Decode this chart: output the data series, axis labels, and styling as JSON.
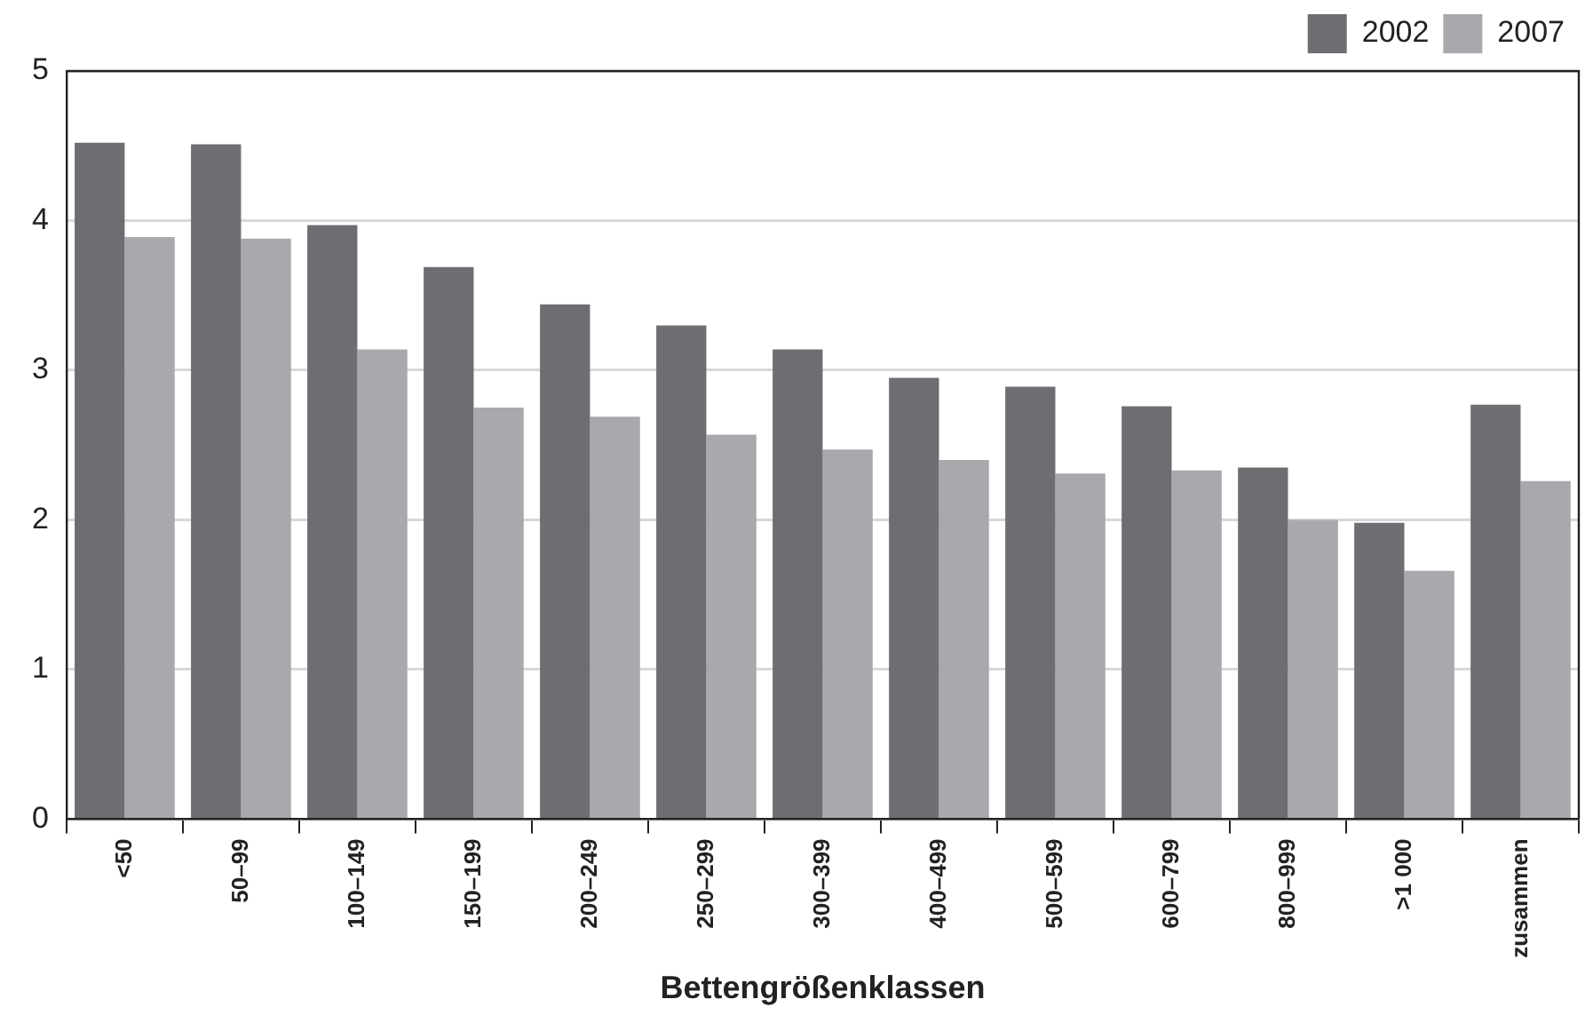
{
  "chart_data": {
    "type": "bar",
    "xlabel": "Bettengrößenklassen",
    "categories": [
      "<50",
      "50–99",
      "100–149",
      "150–199",
      "200–249",
      "250–299",
      "300–399",
      "400–499",
      "500–599",
      "600–799",
      "800–999",
      ">1 000",
      "zusammen"
    ],
    "series": [
      {
        "name": "2002",
        "color": "#6d6e72",
        "values": [
          4.52,
          4.51,
          3.97,
          3.69,
          3.44,
          3.3,
          3.14,
          2.95,
          2.89,
          2.76,
          2.35,
          1.98,
          2.77
        ]
      },
      {
        "name": "2007",
        "color": "#a8a9ad",
        "values": [
          3.89,
          3.88,
          3.14,
          2.75,
          2.69,
          2.57,
          2.47,
          2.4,
          2.31,
          2.33,
          2.0,
          1.66,
          2.26
        ]
      }
    ],
    "ylim": [
      0,
      5
    ],
    "yticks": [
      0,
      1,
      2,
      3,
      4,
      5
    ],
    "grid": "y",
    "legend": "top right"
  }
}
